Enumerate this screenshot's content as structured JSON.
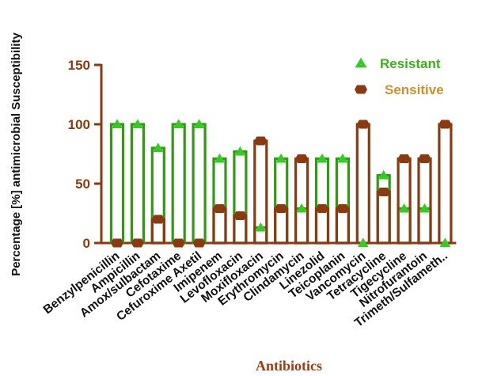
{
  "chart_data": {
    "type": "bar",
    "xlabel": "Antibiotics",
    "ylabel": "Percentage [%] antimicrobial Susceptibility",
    "ylim": [
      0,
      150
    ],
    "yticks": [
      0,
      50,
      100,
      150
    ],
    "grid": false,
    "legend_position": "top-right",
    "categories": [
      "Benzylpenicillin",
      "Ampicillin",
      "Amox/sulbactam",
      "Cefotaxime",
      "Cefuroxime Axetil",
      "Imipenem",
      "Levofloxacin",
      "Moxifloxacin",
      "Erythromycin",
      "Clindamycin",
      "Linezolid",
      "Teicoplanin",
      "Vancomycin",
      "Tetracycline",
      "Tigecycline",
      "Nitrofurantoin",
      "Trimeth/Sulfameth.."
    ],
    "series": [
      {
        "name": "Resistant",
        "color": "#2f9a12",
        "marker": "triangle",
        "values": [
          100,
          100,
          80,
          100,
          100,
          71,
          77,
          13,
          71,
          29,
          71,
          71,
          0,
          57,
          29,
          29,
          0
        ]
      },
      {
        "name": "Sensitive",
        "color": "#8b3a0f",
        "marker": "hexagon",
        "values": [
          0,
          0,
          20,
          0,
          0,
          29,
          23,
          86,
          29,
          71,
          29,
          29,
          100,
          43,
          71,
          71,
          100
        ]
      }
    ]
  }
}
